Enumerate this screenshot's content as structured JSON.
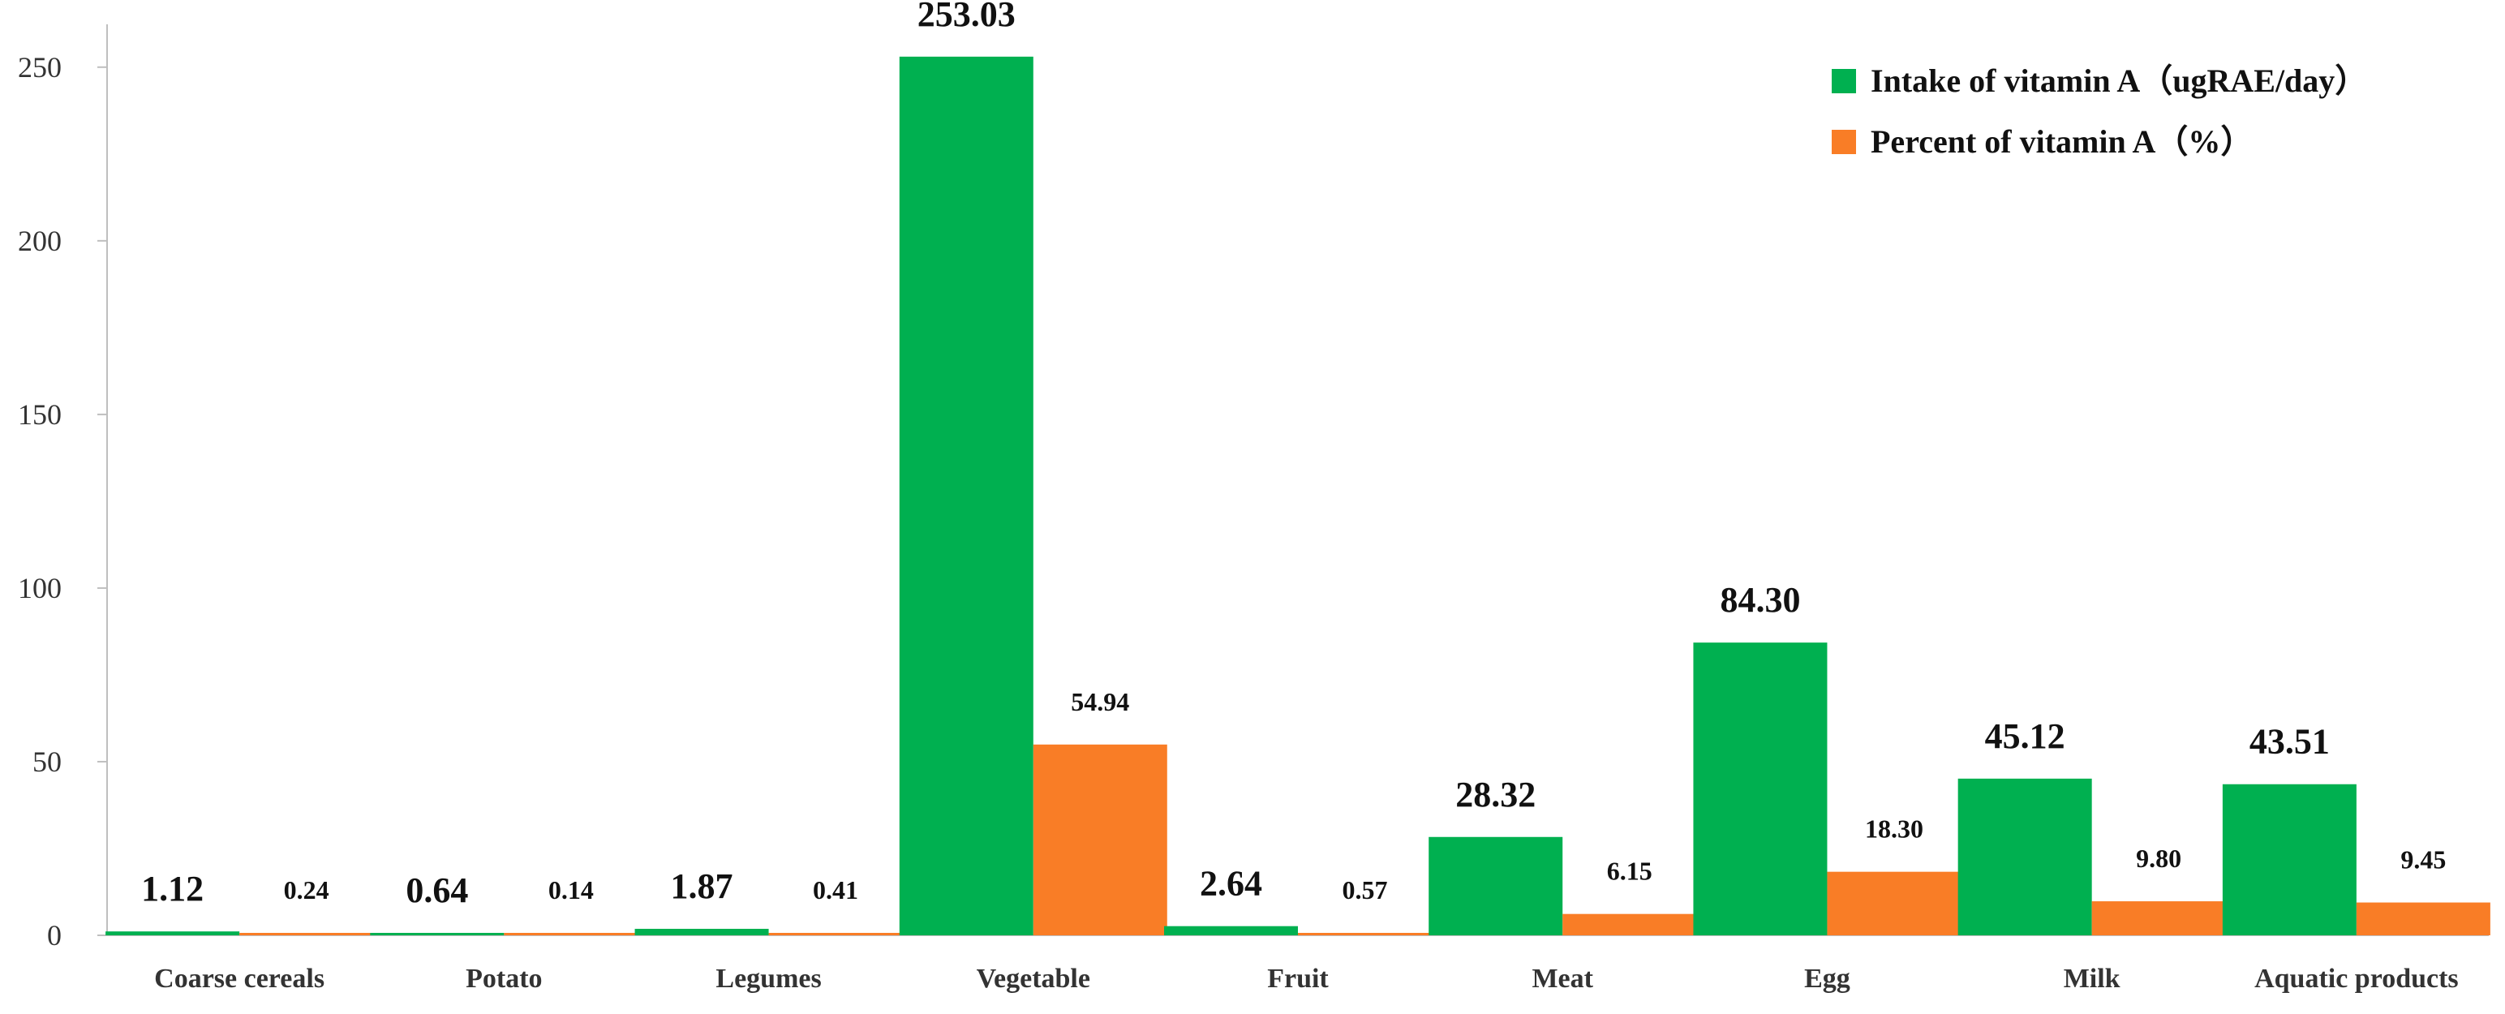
{
  "chart_data": {
    "type": "bar",
    "title": "",
    "xlabel": "",
    "ylabel": "",
    "categories": [
      "Coarse cereals",
      "Potato",
      "Legumes",
      "Vegetable",
      "Fruit",
      "Meat",
      "Egg",
      "Milk",
      "Aquatic products"
    ],
    "series": [
      {
        "name": "Intake of vitamin A（ugRAE/day）",
        "color": "#00B050",
        "values": [
          1.12,
          0.64,
          1.87,
          253.03,
          2.64,
          28.32,
          84.3,
          45.12,
          43.51
        ],
        "labels": [
          "1.12",
          "0.64",
          "1.87",
          "253.03",
          "2.64",
          "28.32",
          "84.30",
          "45.12",
          "43.51"
        ]
      },
      {
        "name": "Percent of vitamin A（%）",
        "color": "#F97D26",
        "values": [
          0.24,
          0.14,
          0.41,
          54.94,
          0.57,
          6.15,
          18.3,
          9.8,
          9.45
        ],
        "labels": [
          "0.24",
          "0.14",
          "0.41",
          "54.94",
          "0.57",
          "6.15",
          "18.30",
          "9.80",
          "9.45"
        ]
      }
    ],
    "ylim": [
      0,
      260
    ],
    "yticks": [
      "0",
      "50",
      "100",
      "150",
      "200",
      "250"
    ],
    "grid": false,
    "legend": "top-right"
  }
}
